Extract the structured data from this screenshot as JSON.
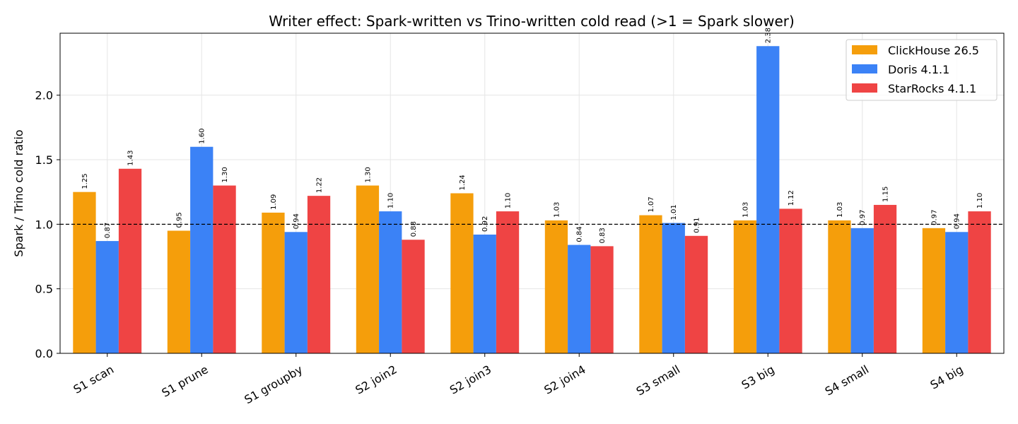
{
  "chart_data": {
    "type": "bar",
    "title": "Writer effect: Spark-written vs Trino-written cold read (>1 = Spark slower)",
    "xlabel": "",
    "ylabel": "Spark / Trino cold ratio",
    "ylim": [
      0,
      2.48
    ],
    "yticks": [
      0.0,
      0.5,
      1.0,
      1.5,
      2.0
    ],
    "ytick_labels": [
      "0.0",
      "0.5",
      "1.0",
      "1.5",
      "2.0"
    ],
    "reference_line": 1.0,
    "grid": true,
    "legend_position": "top-right",
    "categories": [
      "S1 scan",
      "S1 prune",
      "S1 groupby",
      "S2 join2",
      "S2 join3",
      "S2 join4",
      "S3 small",
      "S3 big",
      "S4 small",
      "S4 big"
    ],
    "series": [
      {
        "name": "ClickHouse 26.5",
        "color": "#f59e0b",
        "values": [
          1.25,
          0.95,
          1.09,
          1.3,
          1.24,
          1.03,
          1.07,
          1.03,
          1.03,
          0.97
        ],
        "labels": [
          "1.25",
          "0.95",
          "1.09",
          "1.30",
          "1.24",
          "1.03",
          "1.07",
          "1.03",
          "1.03",
          "0.97"
        ]
      },
      {
        "name": "Doris 4.1.1",
        "color": "#3b82f6",
        "values": [
          0.87,
          1.6,
          0.94,
          1.1,
          0.92,
          0.84,
          1.01,
          2.38,
          0.97,
          0.94
        ],
        "labels": [
          "0.87",
          "1.60",
          "0.94",
          "1.10",
          "0.92",
          "0.84",
          "1.01",
          "2.38",
          "0.97",
          "0.94"
        ]
      },
      {
        "name": "StarRocks 4.1.1",
        "color": "#ef4444",
        "values": [
          1.43,
          1.3,
          1.22,
          0.88,
          1.1,
          0.83,
          0.91,
          1.12,
          1.15,
          1.1
        ],
        "labels": [
          "1.43",
          "1.30",
          "1.22",
          "0.88",
          "1.10",
          "0.83",
          "0.91",
          "1.12",
          "1.15",
          "1.10"
        ]
      }
    ]
  }
}
